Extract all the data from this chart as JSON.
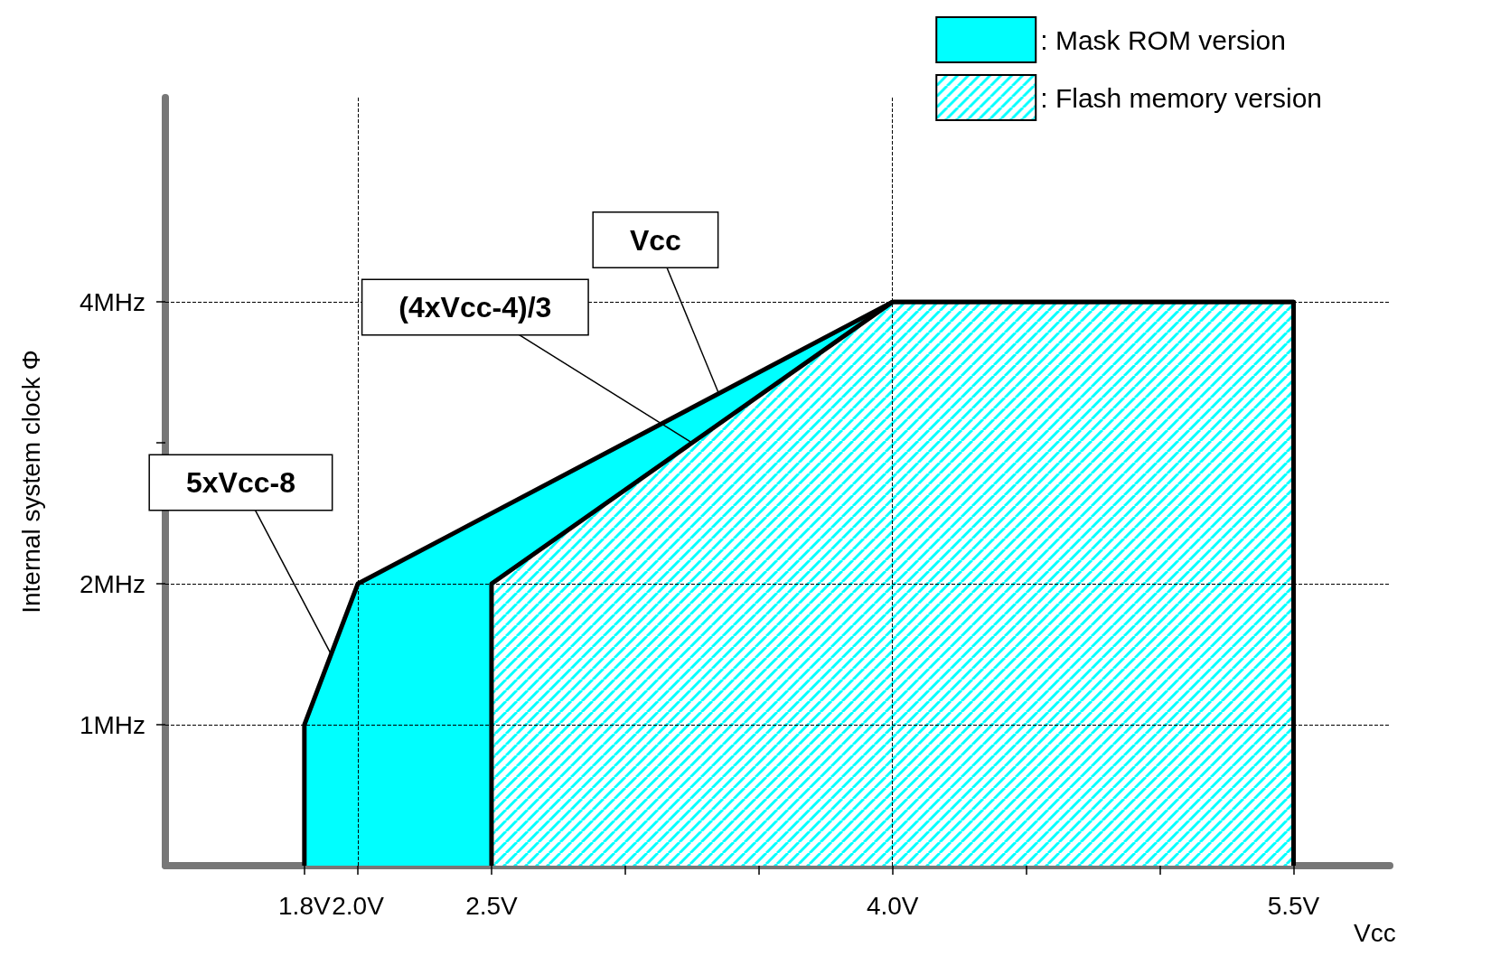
{
  "chart_data": {
    "type": "area",
    "xlabel": "Vcc",
    "ylabel": "Internal system clock Φ",
    "xlim": [
      1.28,
      5.86
    ],
    "ylim": [
      0,
      5.45
    ],
    "xticks": [
      {
        "value": 1.8,
        "label": "1.8V"
      },
      {
        "value": 2.0,
        "label": "2.0V"
      },
      {
        "value": 2.5,
        "label": "2.5V"
      },
      {
        "value": 3.0,
        "label": null
      },
      {
        "value": 3.5,
        "label": null
      },
      {
        "value": 4.0,
        "label": "4.0V"
      },
      {
        "value": 4.5,
        "label": null
      },
      {
        "value": 5.0,
        "label": null
      },
      {
        "value": 5.5,
        "label": "5.5V"
      }
    ],
    "yticks": [
      {
        "value": 1,
        "label": "1MHz"
      },
      {
        "value": 2,
        "label": "2MHz"
      },
      {
        "value": 3,
        "label": null
      },
      {
        "value": 4,
        "label": "4MHz"
      }
    ],
    "series": [
      {
        "name": ": Mask ROM version",
        "color": "#00ffff",
        "x": [
          1.8,
          1.8,
          2.0,
          4.0,
          5.5,
          5.5
        ],
        "values": [
          0,
          1,
          2,
          4,
          4,
          0
        ]
      },
      {
        "name": ": Flash memory version",
        "color": "#00ffff",
        "x": [
          2.5,
          2.5,
          4.0,
          5.5,
          5.5
        ],
        "values": [
          0,
          2,
          4,
          4,
          0
        ]
      }
    ],
    "ref_lines": [
      {
        "axis": "y",
        "value": 1,
        "line_style": "dashed"
      },
      {
        "axis": "y",
        "value": 2,
        "line_style": "dashed"
      },
      {
        "axis": "y",
        "value": 4,
        "line_style": "dashed"
      },
      {
        "axis": "x",
        "value": 2.0,
        "line_style": "dashed"
      },
      {
        "axis": "x",
        "value": 4.0,
        "line_style": "dashed"
      }
    ],
    "annotations": [
      {
        "text": "Vcc",
        "x": 3.35,
        "y": 3.35
      },
      {
        "text": "(4xVcc-4)/3",
        "x": 3.25,
        "y": 3.0
      },
      {
        "text": "5xVcc-8",
        "x": 1.9,
        "y": 1.5
      }
    ],
    "legend": "top right",
    "grid": false
  }
}
